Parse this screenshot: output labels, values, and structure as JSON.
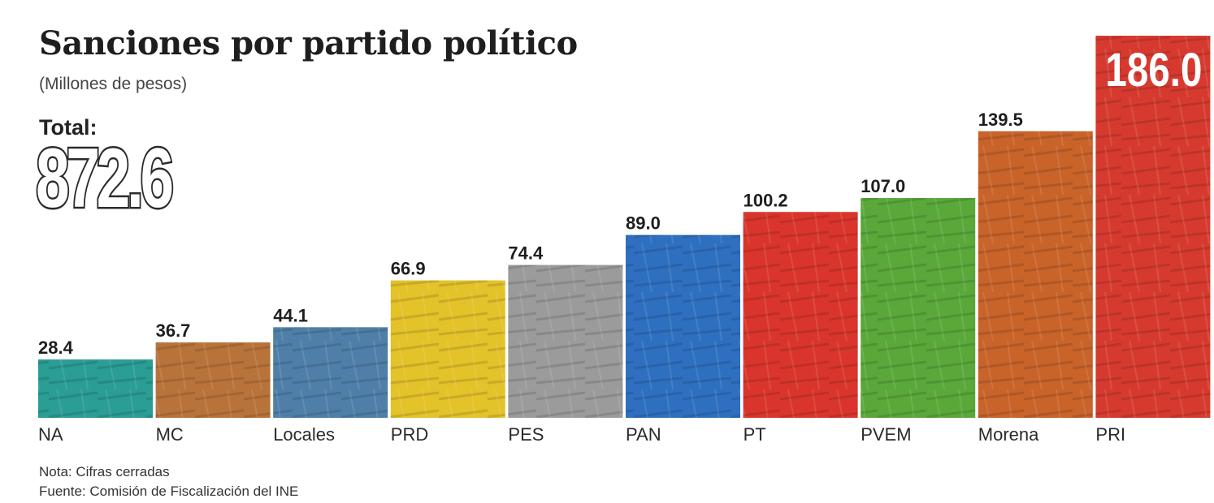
{
  "header": {
    "title": "Sanciones por partido político",
    "subtitle": "(Millones de pesos)",
    "total_label": "Total:",
    "total_value": "872.6"
  },
  "footer": {
    "note": "Nota: Cifras cerradas",
    "source": "Fuente: Comisión de Fiscalización del INE"
  },
  "chart_data": {
    "type": "bar",
    "title": "Sanciones por partido político",
    "subtitle": "(Millones de pesos)",
    "categories": [
      "NA",
      "MC",
      "Locales",
      "PRD",
      "PES",
      "PAN",
      "PT",
      "PVEM",
      "Morena",
      "PRI"
    ],
    "values": [
      28.4,
      36.7,
      44.1,
      66.9,
      74.4,
      89.0,
      100.2,
      107.0,
      139.5,
      186.0
    ],
    "value_labels": [
      "28.4",
      "36.7",
      "44.1",
      "66.9",
      "74.4",
      "89.0",
      "100.2",
      "107.0",
      "139.5",
      "186.0"
    ],
    "colors": [
      "#2a9d94",
      "#b8733a",
      "#4f7fa8",
      "#e3c22a",
      "#9b9b9b",
      "#2f6fbf",
      "#d9352c",
      "#5aa83a",
      "#c8632a",
      "#d63a2f"
    ],
    "ylim": [
      0,
      186.0
    ],
    "xlabel": "",
    "ylabel": "",
    "grid": false,
    "legend": "none"
  }
}
